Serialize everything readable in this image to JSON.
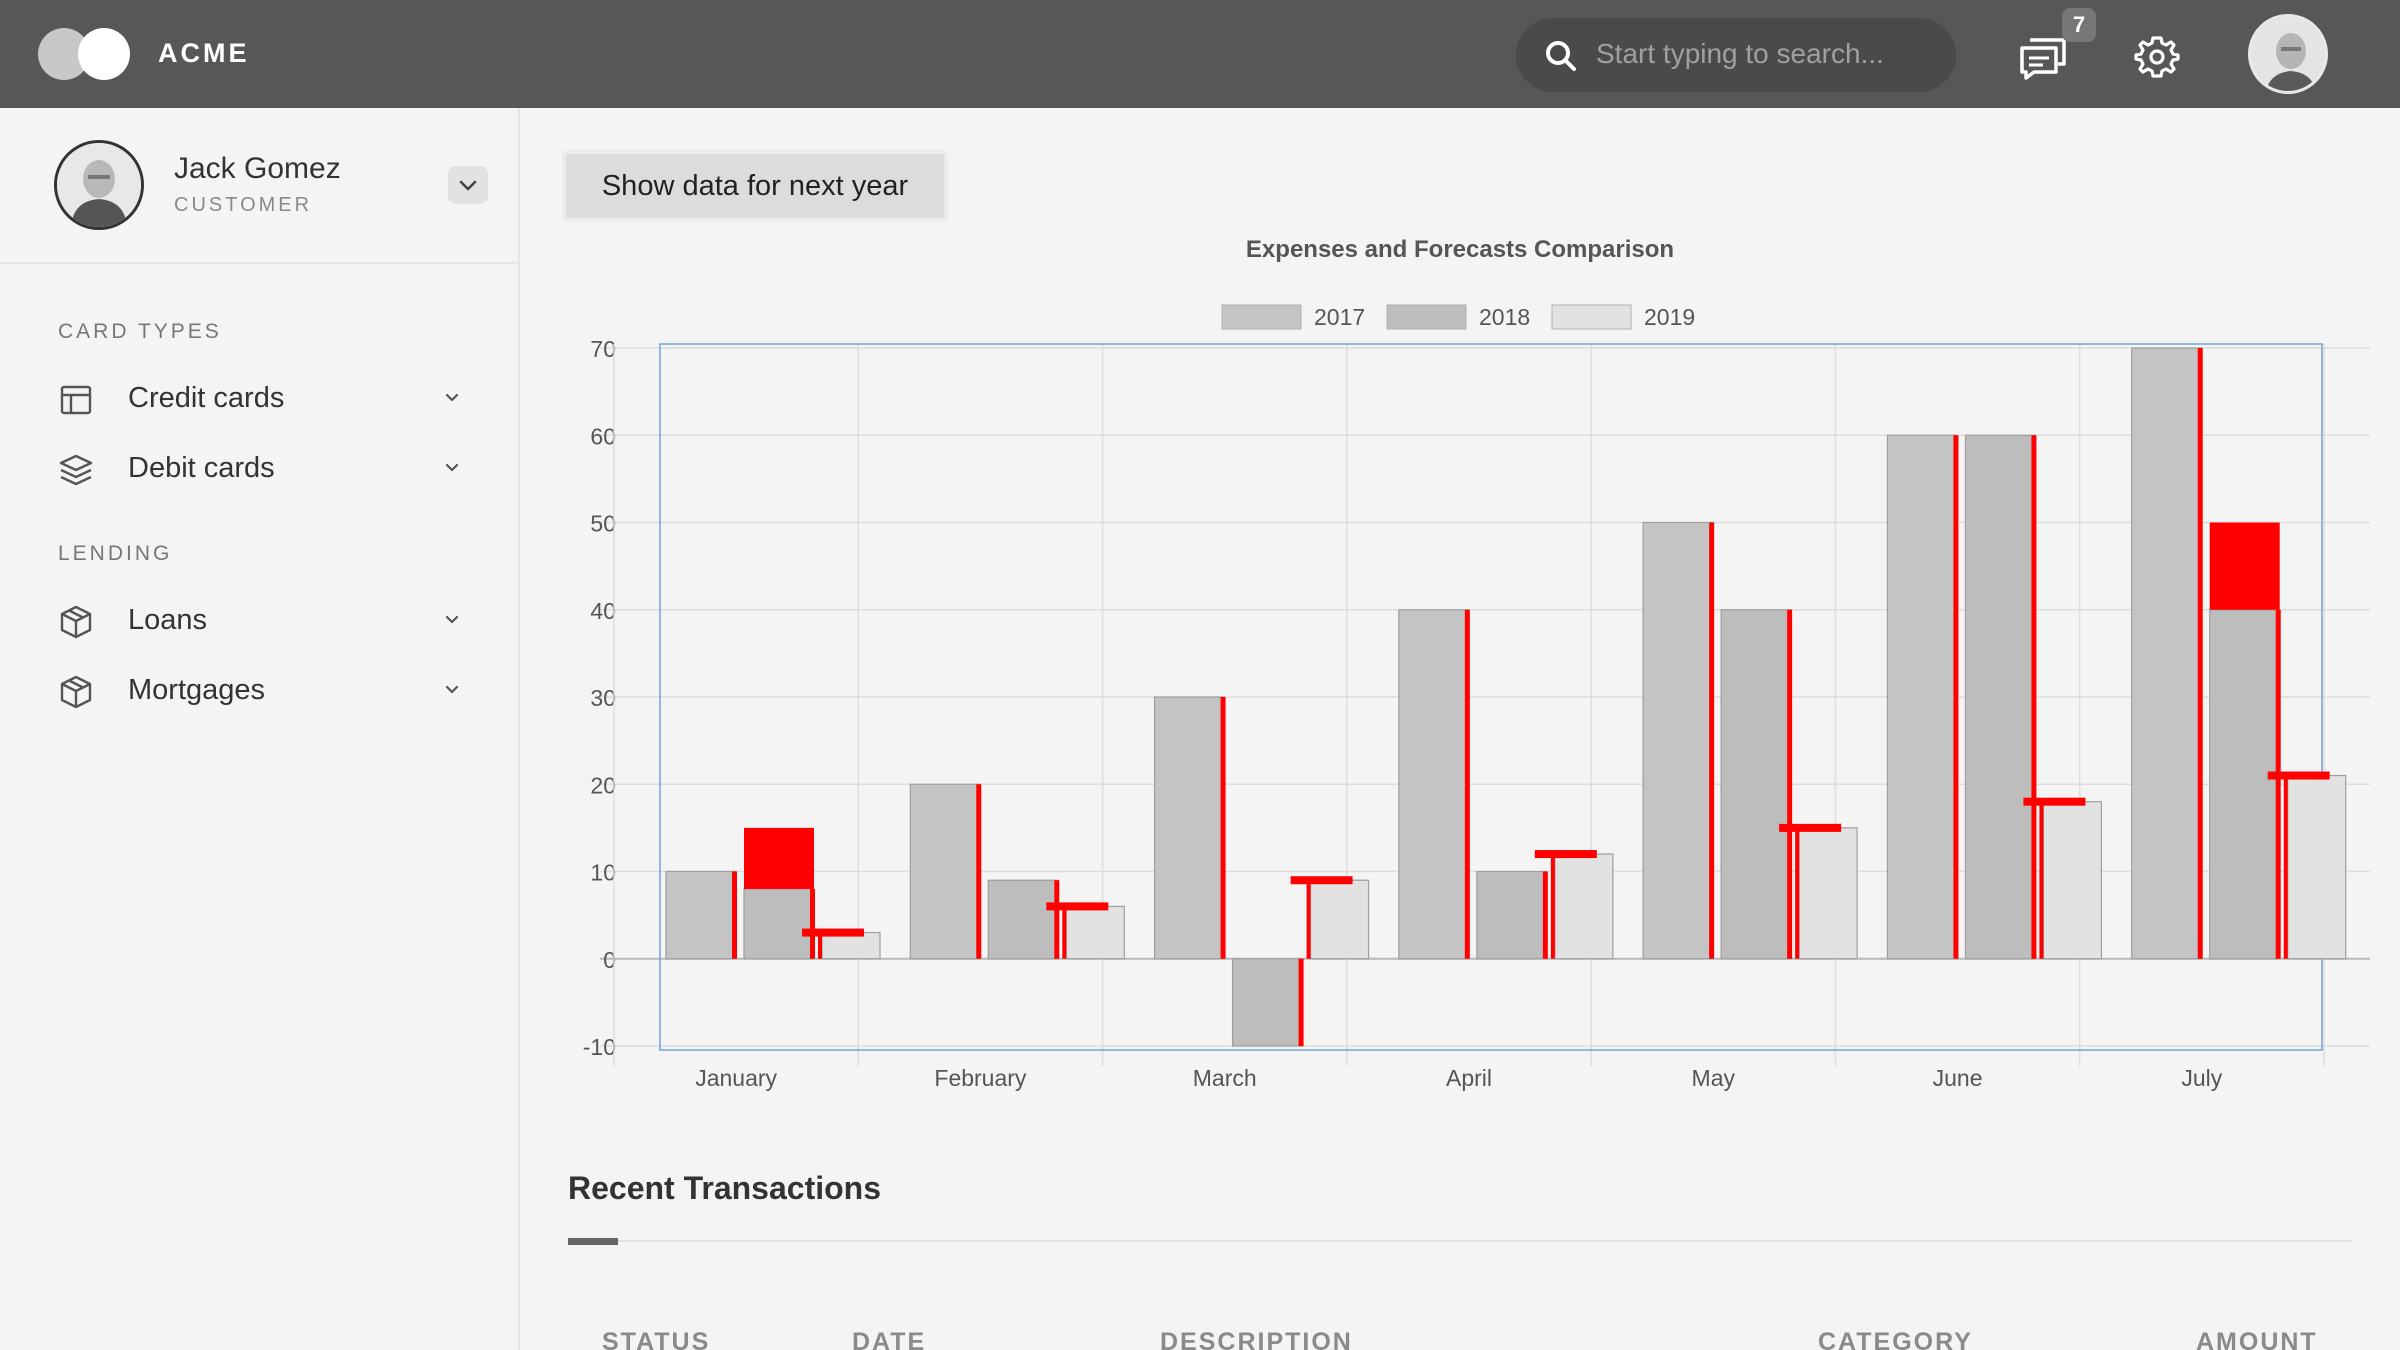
{
  "header": {
    "brand": "ACME",
    "search_placeholder": "Start typing to search...",
    "notifications_count": "7"
  },
  "profile": {
    "name": "Jack Gomez",
    "role": "CUSTOMER"
  },
  "sidebar": {
    "sections": [
      {
        "title": "CARD TYPES",
        "items": [
          {
            "label": "Credit cards",
            "icon": "layout-icon"
          },
          {
            "label": "Debit cards",
            "icon": "layers-icon"
          }
        ]
      },
      {
        "title": "LENDING",
        "items": [
          {
            "label": "Loans",
            "icon": "box-icon"
          },
          {
            "label": "Mortgages",
            "icon": "box-icon"
          }
        ]
      }
    ]
  },
  "main": {
    "next_year_button": "Show data for next year",
    "transactions_title": "Recent Transactions",
    "columns": [
      "STATUS",
      "DATE",
      "DESCRIPTION",
      "CATEGORY",
      "AMOUNT"
    ]
  },
  "colors": {
    "accent": "#ff0000",
    "bar_2017": "#c4c4c4",
    "bar_2018": "#bdbdbd",
    "bar_2019": "#e2e2e2"
  },
  "chart_data": {
    "type": "bar",
    "title": "Expenses and Forecasts Comparison",
    "categories": [
      "January",
      "February",
      "March",
      "April",
      "May",
      "June",
      "July"
    ],
    "series": [
      {
        "name": "2017",
        "values": [
          10,
          20,
          30,
          40,
          50,
          60,
          70
        ]
      },
      {
        "name": "2018",
        "values": [
          8,
          9,
          -10,
          10,
          40,
          60,
          40
        ]
      },
      {
        "name": "2019",
        "values": [
          3,
          6,
          9,
          12,
          15,
          18,
          21
        ]
      }
    ],
    "forecast_2018": [
      15,
      null,
      null,
      null,
      null,
      null,
      50
    ],
    "ylim": [
      -10,
      70
    ],
    "yticks": [
      -10,
      0,
      10,
      20,
      30,
      40,
      50,
      60,
      70
    ],
    "grid": true,
    "legend": "top-center",
    "xlabel": "",
    "ylabel": ""
  }
}
